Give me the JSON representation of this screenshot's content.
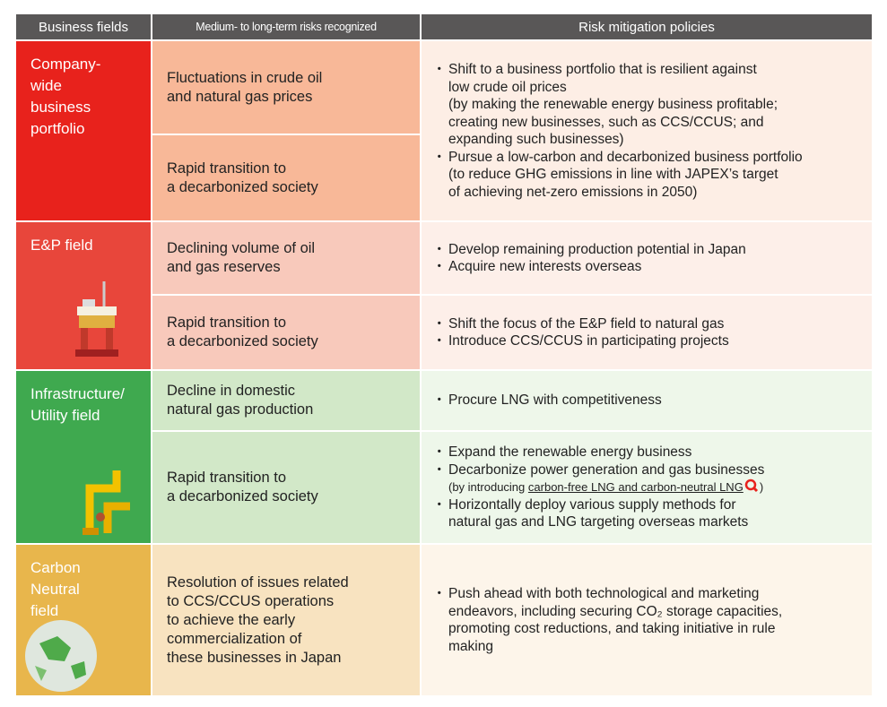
{
  "header": [
    "Business fields",
    "Medium- to long-term risks recognized",
    "Risk mitigation policies"
  ],
  "groups": [
    {
      "field": "Company-\nwide\nbusiness\nportfolio",
      "items": [
        {
          "risks": [
            "Fluctuations in crude oil\nand natural gas prices",
            "Rapid transition to\na decarbonized society"
          ],
          "policies": [
            {
              "text": "Shift to a business portfolio that is resilient against\nlow crude oil prices\n(by making the renewable energy business profitable;\ncreating new businesses, such as CCS/CCUS; and\nexpanding such businesses)"
            },
            {
              "text": "Pursue a low-carbon and decarbonized business portfolio\n(to reduce GHG emissions in line with JAPEX’s target\nof achieving net-zero emissions in 2050)"
            }
          ]
        }
      ]
    },
    {
      "field": "E&P field",
      "items": [
        {
          "risks": [
            "Declining volume of oil\nand gas reserves"
          ],
          "policies": [
            {
              "text": "Develop remaining production potential in Japan"
            },
            {
              "text": "Acquire new interests overseas"
            }
          ]
        },
        {
          "risks": [
            "Rapid transition to\na decarbonized society"
          ],
          "policies": [
            {
              "text": "Shift the focus of the E&P field to natural gas"
            },
            {
              "text": "Introduce CCS/CCUS in participating projects"
            }
          ]
        }
      ]
    },
    {
      "field": "Infrastructure/\nUtility field",
      "items": [
        {
          "risks": [
            "Decline in domestic\nnatural gas production"
          ],
          "policies": [
            {
              "text": "Procure LNG with competitiveness"
            }
          ]
        },
        {
          "risks": [
            "Rapid transition to\na decarbonized society"
          ],
          "policies": [
            {
              "text": "Expand the renewable energy business"
            },
            {
              "text": "Decarbonize power generation and gas businesses",
              "note": "(by introducing",
              "link": "carbon-free LNG and carbon-neutral LNG",
              "close": ")"
            },
            {
              "text": "Horizontally deploy various supply methods for\nnatural gas and LNG targeting overseas markets"
            }
          ]
        }
      ]
    },
    {
      "field": "Carbon\nNeutral\nfield",
      "items": [
        {
          "risks": [
            "Resolution of issues related\nto CCS/CCUS operations\nto achieve the early\ncommercialization of\nthese businesses in Japan"
          ],
          "policies": [
            {
              "text": "Push ahead with both technological and marketing\nendeavors, including securing CO₂ storage capacities,\npromoting cost reductions, and taking initiative in rule\nmaking"
            }
          ]
        }
      ]
    }
  ]
}
